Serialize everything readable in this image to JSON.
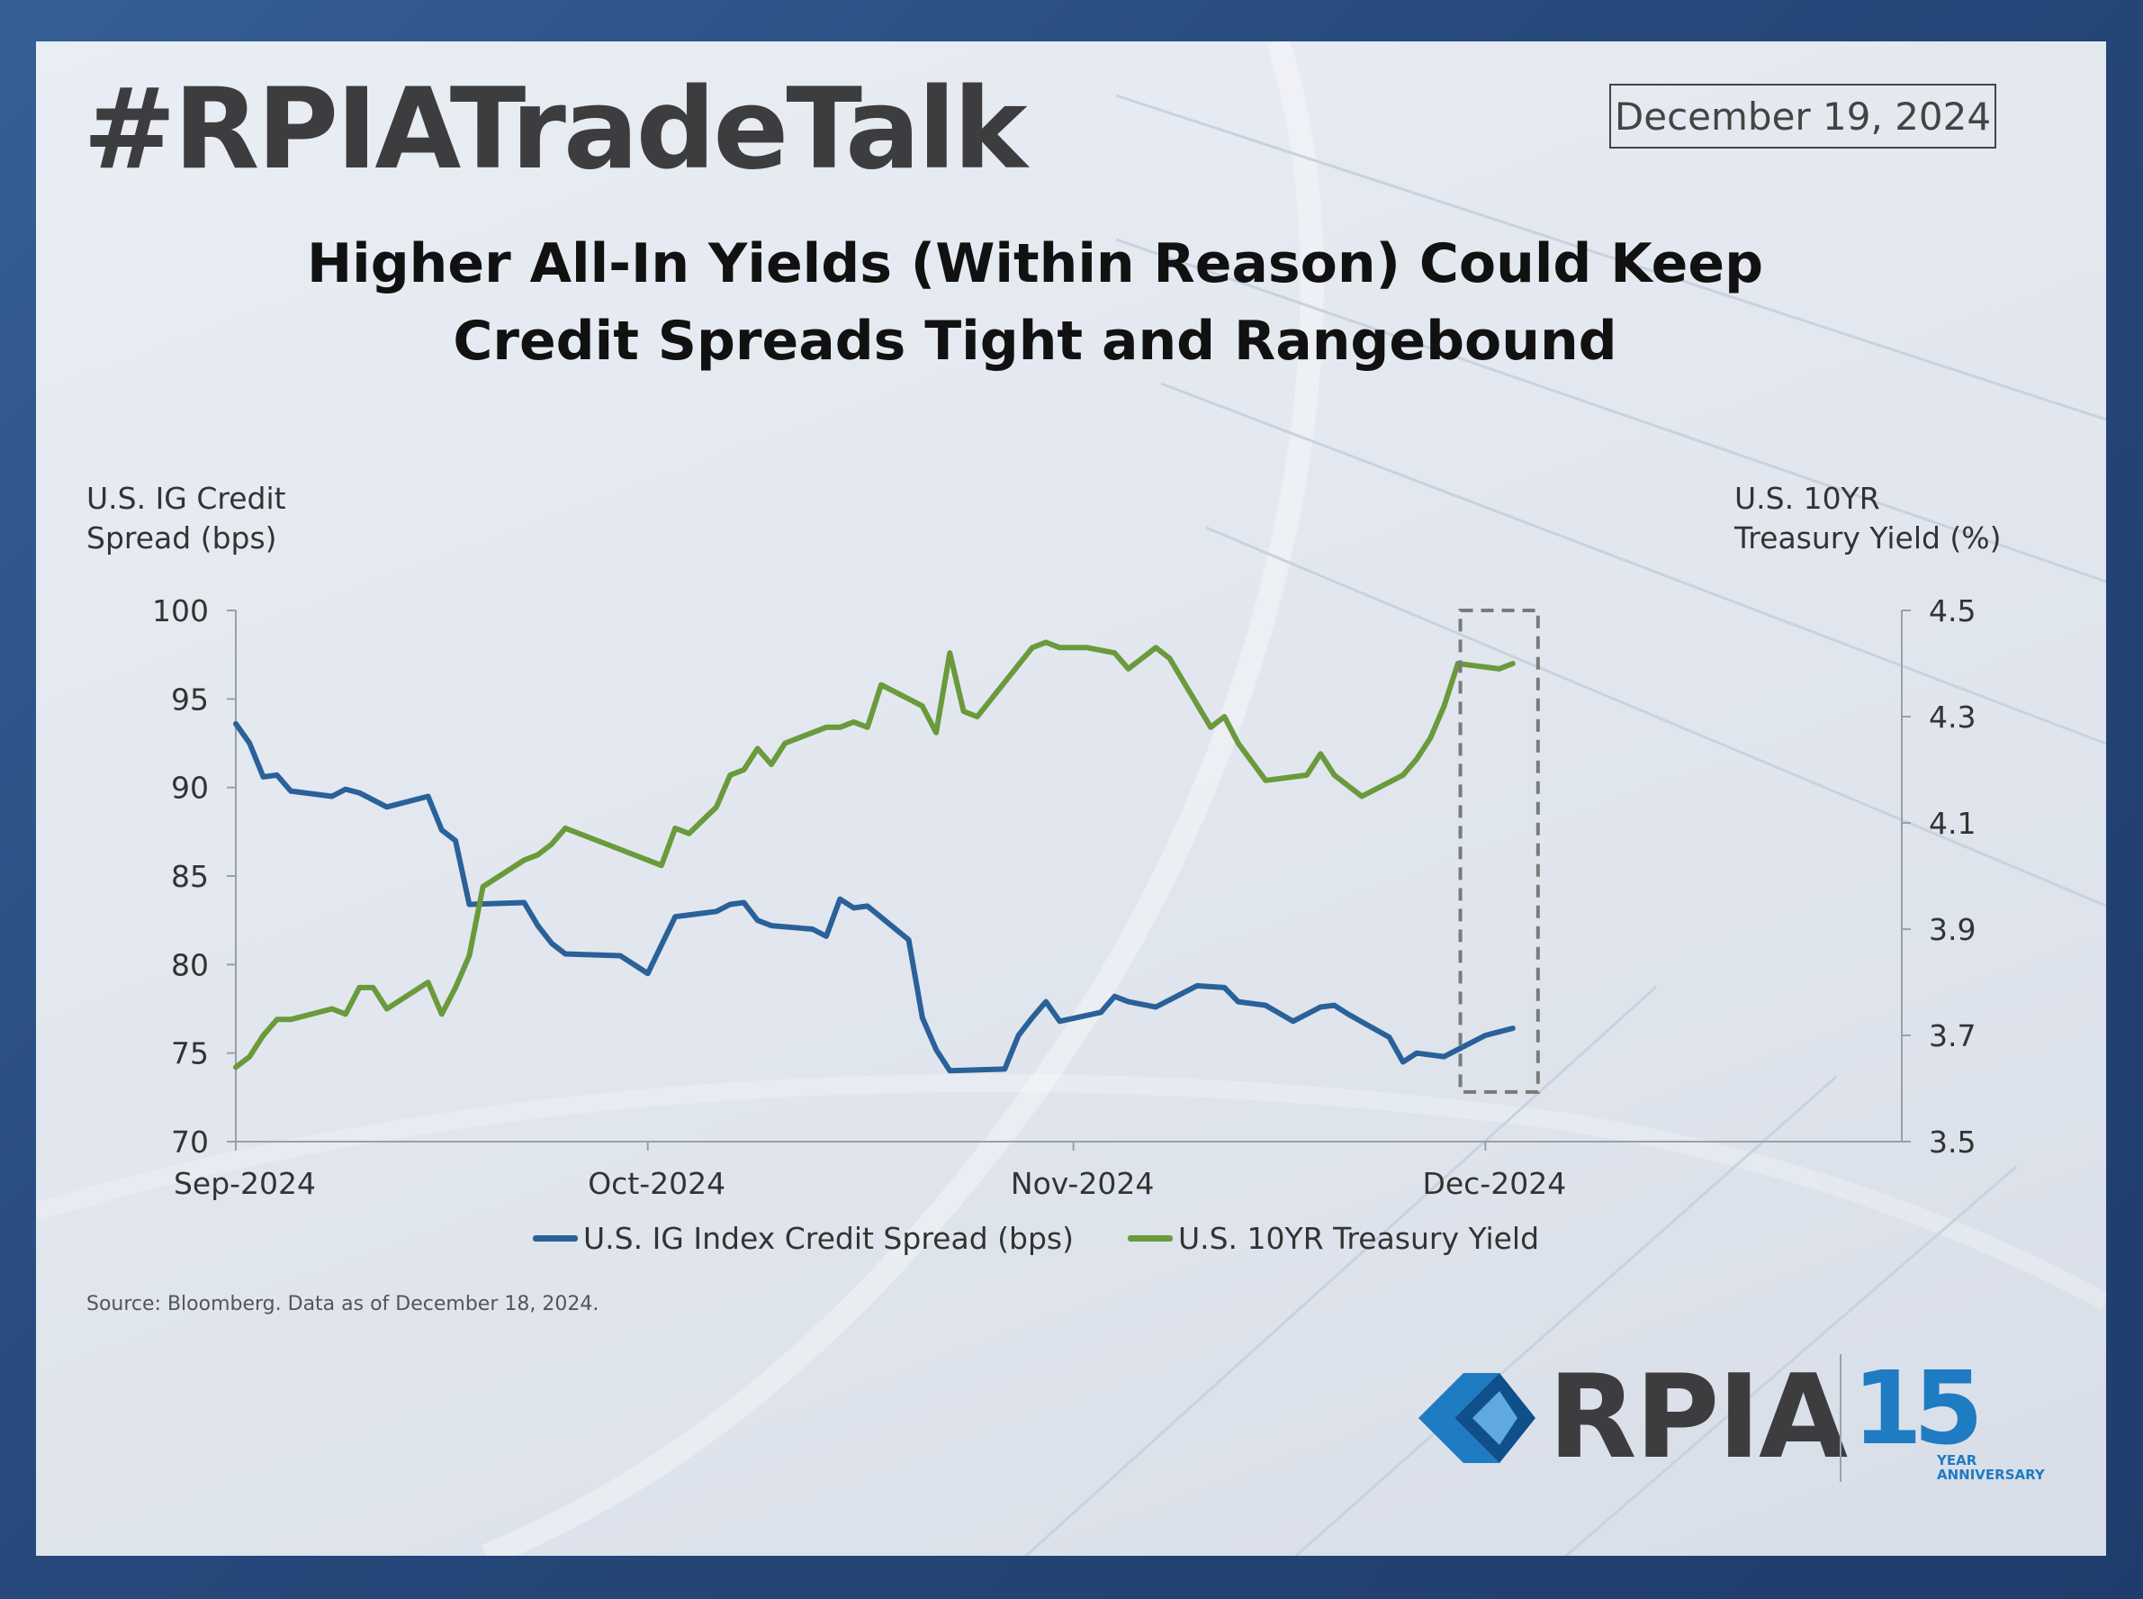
{
  "header": {
    "hashtag": "#RPIATradeTalk",
    "date": "December 19, 2024"
  },
  "title_lines": [
    "Higher All-In Yields (Within Reason) Could Keep",
    "Credit Spreads Tight and Rangebound"
  ],
  "axis_titles": {
    "left": [
      "U.S. IG Credit",
      "Spread (bps)"
    ],
    "right": [
      "U.S. 10YR",
      "Treasury Yield (%)"
    ]
  },
  "legend": {
    "spread": "U.S. IG Index Credit Spread (bps)",
    "yield": "U.S. 10YR Treasury Yield"
  },
  "source": "Source: Bloomberg. Data as of December 18, 2024.",
  "logo": {
    "name": "RPIA",
    "years": "15",
    "year_word": "YEAR",
    "anniversary_word": "ANNIVERSARY"
  },
  "colors": {
    "spread": "#2a6199",
    "yield": "#6a9a3c",
    "highlight_box": "#7a7a7a"
  },
  "chart_data": {
    "type": "line",
    "x_domain": [
      "2024-09-01",
      "2024-12-31"
    ],
    "x_ticks": [
      {
        "date": "2024-09-01",
        "label": "Sep-2024"
      },
      {
        "date": "2024-10-01",
        "label": "Oct-2024"
      },
      {
        "date": "2024-11-01",
        "label": "Nov-2024"
      },
      {
        "date": "2024-12-01",
        "label": "Dec-2024"
      }
    ],
    "y_left": {
      "min": 70,
      "max": 100,
      "ticks": [
        100,
        95,
        90,
        85,
        80,
        75,
        70
      ]
    },
    "y_right": {
      "min": 3.5,
      "max": 4.5,
      "ticks": [
        "4.5",
        "4.3",
        "4.1",
        "3.9",
        "3.7",
        "3.5"
      ]
    },
    "highlight_range": {
      "x_start": "2024-11-28",
      "x_end": "2024-12-03",
      "y_left_top": 100,
      "y_left_bottom": 72.8
    },
    "series": [
      {
        "name": "U.S. IG Index Credit Spread (bps)",
        "axis": "left",
        "points": [
          [
            "2024-09-01",
            93.6
          ],
          [
            "2024-09-02",
            92.5
          ],
          [
            "2024-09-03",
            90.6
          ],
          [
            "2024-09-04",
            90.7
          ],
          [
            "2024-09-05",
            89.8
          ],
          [
            "2024-09-08",
            89.5
          ],
          [
            "2024-09-09",
            89.9
          ],
          [
            "2024-09-10",
            89.7
          ],
          [
            "2024-09-12",
            88.9
          ],
          [
            "2024-09-15",
            89.5
          ],
          [
            "2024-09-16",
            87.6
          ],
          [
            "2024-09-17",
            87.0
          ],
          [
            "2024-09-18",
            83.4
          ],
          [
            "2024-09-22",
            83.5
          ],
          [
            "2024-09-23",
            82.2
          ],
          [
            "2024-09-24",
            81.2
          ],
          [
            "2024-09-25",
            80.6
          ],
          [
            "2024-09-29",
            80.5
          ],
          [
            "2024-09-30",
            80.0
          ],
          [
            "2024-10-01",
            79.5
          ],
          [
            "2024-10-02",
            81.1
          ],
          [
            "2024-10-03",
            82.7
          ],
          [
            "2024-10-06",
            83.0
          ],
          [
            "2024-10-07",
            83.4
          ],
          [
            "2024-10-08",
            83.5
          ],
          [
            "2024-10-09",
            82.5
          ],
          [
            "2024-10-10",
            82.2
          ],
          [
            "2024-10-13",
            82.0
          ],
          [
            "2024-10-14",
            81.6
          ],
          [
            "2024-10-15",
            83.7
          ],
          [
            "2024-10-16",
            83.2
          ],
          [
            "2024-10-17",
            83.3
          ],
          [
            "2024-10-20",
            81.4
          ],
          [
            "2024-10-21",
            77.0
          ],
          [
            "2024-10-22",
            75.2
          ],
          [
            "2024-10-23",
            74.0
          ],
          [
            "2024-10-27",
            74.1
          ],
          [
            "2024-10-28",
            76.0
          ],
          [
            "2024-10-29",
            77.0
          ],
          [
            "2024-10-30",
            77.9
          ],
          [
            "2024-10-31",
            76.8
          ],
          [
            "2024-11-03",
            77.3
          ],
          [
            "2024-11-04",
            78.2
          ],
          [
            "2024-11-05",
            77.9
          ],
          [
            "2024-11-07",
            77.6
          ],
          [
            "2024-11-10",
            78.8
          ],
          [
            "2024-11-12",
            78.7
          ],
          [
            "2024-11-13",
            77.9
          ],
          [
            "2024-11-15",
            77.7
          ],
          [
            "2024-11-17",
            76.8
          ],
          [
            "2024-11-19",
            77.6
          ],
          [
            "2024-11-20",
            77.7
          ],
          [
            "2024-11-21",
            77.2
          ],
          [
            "2024-11-24",
            75.9
          ],
          [
            "2024-11-25",
            74.5
          ],
          [
            "2024-11-26",
            75.0
          ],
          [
            "2024-11-28",
            74.8
          ],
          [
            "2024-11-29",
            75.2
          ],
          [
            "2024-12-01",
            76.0
          ],
          [
            "2024-12-03",
            76.4
          ]
        ]
      },
      {
        "name": "U.S. 10YR Treasury Yield",
        "axis": "right",
        "points": [
          [
            "2024-09-01",
            3.64
          ],
          [
            "2024-09-02",
            3.66
          ],
          [
            "2024-09-03",
            3.7
          ],
          [
            "2024-09-04",
            3.73
          ],
          [
            "2024-09-05",
            3.73
          ],
          [
            "2024-09-08",
            3.75
          ],
          [
            "2024-09-09",
            3.74
          ],
          [
            "2024-09-10",
            3.79
          ],
          [
            "2024-09-11",
            3.79
          ],
          [
            "2024-09-12",
            3.75
          ],
          [
            "2024-09-15",
            3.8
          ],
          [
            "2024-09-16",
            3.74
          ],
          [
            "2024-09-17",
            3.79
          ],
          [
            "2024-09-18",
            3.85
          ],
          [
            "2024-09-19",
            3.98
          ],
          [
            "2024-09-22",
            4.03
          ],
          [
            "2024-09-23",
            4.04
          ],
          [
            "2024-09-24",
            4.06
          ],
          [
            "2024-09-25",
            4.09
          ],
          [
            "2024-09-29",
            4.05
          ],
          [
            "2024-10-01",
            4.03
          ],
          [
            "2024-10-02",
            4.02
          ],
          [
            "2024-10-03",
            4.09
          ],
          [
            "2024-10-04",
            4.08
          ],
          [
            "2024-10-06",
            4.13
          ],
          [
            "2024-10-07",
            4.19
          ],
          [
            "2024-10-08",
            4.2
          ],
          [
            "2024-10-09",
            4.24
          ],
          [
            "2024-10-10",
            4.21
          ],
          [
            "2024-10-11",
            4.25
          ],
          [
            "2024-10-14",
            4.28
          ],
          [
            "2024-10-15",
            4.28
          ],
          [
            "2024-10-16",
            4.29
          ],
          [
            "2024-10-17",
            4.28
          ],
          [
            "2024-10-18",
            4.36
          ],
          [
            "2024-10-21",
            4.32
          ],
          [
            "2024-10-22",
            4.27
          ],
          [
            "2024-10-23",
            4.42
          ],
          [
            "2024-10-24",
            4.31
          ],
          [
            "2024-10-25",
            4.3
          ],
          [
            "2024-10-29",
            4.43
          ],
          [
            "2024-10-30",
            4.44
          ],
          [
            "2024-10-31",
            4.43
          ],
          [
            "2024-11-01",
            4.43
          ],
          [
            "2024-11-02",
            4.43
          ],
          [
            "2024-11-04",
            4.42
          ],
          [
            "2024-11-05",
            4.39
          ],
          [
            "2024-11-07",
            4.43
          ],
          [
            "2024-11-08",
            4.41
          ],
          [
            "2024-11-11",
            4.28
          ],
          [
            "2024-11-12",
            4.3
          ],
          [
            "2024-11-13",
            4.25
          ],
          [
            "2024-11-15",
            4.18
          ],
          [
            "2024-11-18",
            4.19
          ],
          [
            "2024-11-19",
            4.23
          ],
          [
            "2024-11-20",
            4.19
          ],
          [
            "2024-11-22",
            4.15
          ],
          [
            "2024-11-25",
            4.19
          ],
          [
            "2024-11-26",
            4.22
          ],
          [
            "2024-11-27",
            4.26
          ],
          [
            "2024-11-28",
            4.32
          ],
          [
            "2024-11-29",
            4.4
          ],
          [
            "2024-12-02",
            4.39
          ],
          [
            "2024-12-03",
            4.4
          ]
        ]
      }
    ]
  }
}
